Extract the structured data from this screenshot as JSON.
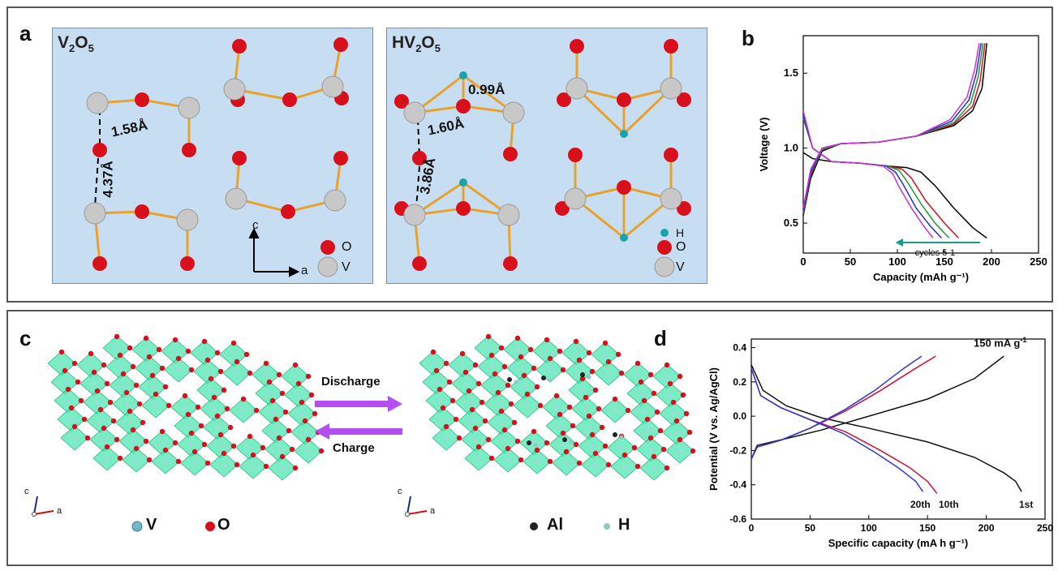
{
  "panels": {
    "a": {
      "letter": "a",
      "left_title": "V",
      "left_title_sub1": "2",
      "left_title_mid": "O",
      "left_title_sub2": "5",
      "right_title": "HV",
      "right_title_sub1": "2",
      "right_title_mid": "O",
      "right_title_sub2": "5",
      "dist_left_bond": "1.58Å",
      "dist_left_gap": "4.37Å",
      "dist_right_bond": "1.60Å",
      "dist_right_gap": "3.86Å",
      "dist_right_h": "0.99Å",
      "axis_c": "c",
      "axis_a": "a",
      "legend_o": "O",
      "legend_v": "V",
      "legend_h": "H",
      "colors": {
        "O": "#d8101c",
        "V": "#c8c8c8",
        "H": "#1aa3a8",
        "bond": "#e8a22c",
        "bg": "#c7def2"
      }
    },
    "b": {
      "letter": "b",
      "annotation": "cycles 5-1"
    },
    "c": {
      "letter": "c",
      "discharge": "Discharge",
      "charge": "Charge",
      "legend_left_v": "V",
      "legend_left_o": "O",
      "legend_right_al": "Al",
      "legend_right_h": "H",
      "axis_c": "c",
      "axis_a": "a",
      "colors": {
        "octahedra": "#4fe6b0",
        "arrow": "#b44ef0"
      }
    },
    "d": {
      "letter": "d",
      "current_label": "150 mA g",
      "current_sup": "-1",
      "labels": [
        "20th",
        "10th",
        "1st"
      ]
    }
  },
  "chart_data": [
    {
      "type": "line",
      "panel": "b",
      "xlabel": "Capacity (mAh g⁻¹)",
      "ylabel": "Voltage (V)",
      "xlim": [
        0,
        250
      ],
      "ylim": [
        0.3,
        1.75
      ],
      "xticks": [
        0,
        50,
        100,
        150,
        200,
        250
      ],
      "yticks": [
        0.5,
        1.0,
        1.5
      ],
      "series": [
        {
          "color": "#000000",
          "discharge": [
            [
              0,
              0.97
            ],
            [
              10,
              0.93
            ],
            [
              30,
              0.91
            ],
            [
              60,
              0.9
            ],
            [
              90,
              0.88
            ],
            [
              110,
              0.87
            ],
            [
              125,
              0.84
            ],
            [
              140,
              0.75
            ],
            [
              160,
              0.6
            ],
            [
              180,
              0.47
            ],
            [
              195,
              0.4
            ]
          ],
          "charge": [
            [
              0,
              0.55
            ],
            [
              8,
              0.8
            ],
            [
              20,
              0.98
            ],
            [
              40,
              1.03
            ],
            [
              80,
              1.04
            ],
            [
              120,
              1.08
            ],
            [
              160,
              1.15
            ],
            [
              180,
              1.25
            ],
            [
              190,
              1.4
            ],
            [
              195,
              1.7
            ]
          ]
        },
        {
          "color": "#d01020",
          "discharge": [
            [
              0,
              1.2
            ],
            [
              10,
              1.0
            ],
            [
              30,
              0.91
            ],
            [
              60,
              0.9
            ],
            [
              90,
              0.88
            ],
            [
              105,
              0.86
            ],
            [
              115,
              0.8
            ],
            [
              130,
              0.65
            ],
            [
              150,
              0.5
            ],
            [
              165,
              0.4
            ]
          ],
          "charge": [
            [
              0,
              0.56
            ],
            [
              8,
              0.82
            ],
            [
              20,
              0.99
            ],
            [
              40,
              1.03
            ],
            [
              80,
              1.04
            ],
            [
              120,
              1.08
            ],
            [
              160,
              1.16
            ],
            [
              180,
              1.28
            ],
            [
              188,
              1.45
            ],
            [
              193,
              1.7
            ]
          ]
        },
        {
          "color": "#1a9a30",
          "discharge": [
            [
              0,
              1.2
            ],
            [
              10,
              1.0
            ],
            [
              30,
              0.91
            ],
            [
              60,
              0.9
            ],
            [
              90,
              0.88
            ],
            [
              102,
              0.85
            ],
            [
              110,
              0.78
            ],
            [
              125,
              0.63
            ],
            [
              140,
              0.5
            ],
            [
              155,
              0.4
            ]
          ],
          "charge": [
            [
              0,
              0.57
            ],
            [
              8,
              0.83
            ],
            [
              20,
              0.99
            ],
            [
              40,
              1.03
            ],
            [
              80,
              1.04
            ],
            [
              120,
              1.08
            ],
            [
              160,
              1.17
            ],
            [
              178,
              1.3
            ],
            [
              186,
              1.48
            ],
            [
              191,
              1.7
            ]
          ]
        },
        {
          "color": "#2030d0",
          "discharge": [
            [
              0,
              1.22
            ],
            [
              10,
              1.0
            ],
            [
              30,
              0.91
            ],
            [
              60,
              0.9
            ],
            [
              88,
              0.88
            ],
            [
              98,
              0.84
            ],
            [
              106,
              0.76
            ],
            [
              120,
              0.6
            ],
            [
              135,
              0.48
            ],
            [
              147,
              0.4
            ]
          ],
          "charge": [
            [
              0,
              0.58
            ],
            [
              8,
              0.84
            ],
            [
              20,
              1.0
            ],
            [
              40,
              1.03
            ],
            [
              80,
              1.04
            ],
            [
              120,
              1.08
            ],
            [
              158,
              1.18
            ],
            [
              176,
              1.32
            ],
            [
              184,
              1.5
            ],
            [
              189,
              1.7
            ]
          ]
        },
        {
          "color": "#d030d0",
          "discharge": [
            [
              0,
              1.25
            ],
            [
              10,
              1.0
            ],
            [
              30,
              0.91
            ],
            [
              60,
              0.9
            ],
            [
              85,
              0.88
            ],
            [
              95,
              0.83
            ],
            [
              102,
              0.74
            ],
            [
              115,
              0.6
            ],
            [
              128,
              0.48
            ],
            [
              138,
              0.4
            ]
          ],
          "charge": [
            [
              0,
              0.6
            ],
            [
              8,
              0.86
            ],
            [
              20,
              1.0
            ],
            [
              40,
              1.03
            ],
            [
              80,
              1.04
            ],
            [
              120,
              1.08
            ],
            [
              156,
              1.19
            ],
            [
              174,
              1.34
            ],
            [
              182,
              1.52
            ],
            [
              187,
              1.7
            ]
          ]
        }
      ]
    },
    {
      "type": "line",
      "panel": "d",
      "xlabel": "Specific capacity (mA h g⁻¹)",
      "ylabel": "Potential (V vs. Ag/AgCl)",
      "xlim": [
        0,
        250
      ],
      "ylim": [
        -0.6,
        0.45
      ],
      "xticks": [
        0,
        50,
        100,
        150,
        200,
        250
      ],
      "yticks": [
        -0.6,
        -0.4,
        -0.2,
        0.0,
        0.2,
        0.4
      ],
      "series": [
        {
          "name": "1st",
          "color": "#111111",
          "discharge": [
            [
              0,
              0.3
            ],
            [
              10,
              0.15
            ],
            [
              30,
              0.06
            ],
            [
              60,
              -0.01
            ],
            [
              100,
              -0.07
            ],
            [
              150,
              -0.15
            ],
            [
              190,
              -0.24
            ],
            [
              215,
              -0.33
            ],
            [
              225,
              -0.38
            ],
            [
              230,
              -0.44
            ]
          ],
          "charge": [
            [
              0,
              -0.25
            ],
            [
              5,
              -0.17
            ],
            [
              30,
              -0.13
            ],
            [
              60,
              -0.08
            ],
            [
              100,
              0.0
            ],
            [
              150,
              0.1
            ],
            [
              190,
              0.22
            ],
            [
              215,
              0.35
            ]
          ]
        },
        {
          "name": "10th",
          "color": "#d0103a",
          "discharge": [
            [
              0,
              0.28
            ],
            [
              8,
              0.12
            ],
            [
              25,
              0.05
            ],
            [
              50,
              -0.02
            ],
            [
              80,
              -0.09
            ],
            [
              110,
              -0.2
            ],
            [
              135,
              -0.3
            ],
            [
              150,
              -0.38
            ],
            [
              158,
              -0.45
            ]
          ],
          "charge": [
            [
              0,
              -0.25
            ],
            [
              5,
              -0.18
            ],
            [
              25,
              -0.14
            ],
            [
              50,
              -0.07
            ],
            [
              80,
              0.03
            ],
            [
              110,
              0.15
            ],
            [
              140,
              0.28
            ],
            [
              157,
              0.35
            ]
          ]
        },
        {
          "name": "20th",
          "color": "#2a38d8",
          "discharge": [
            [
              0,
              0.28
            ],
            [
              8,
              0.12
            ],
            [
              25,
              0.05
            ],
            [
              50,
              -0.02
            ],
            [
              78,
              -0.1
            ],
            [
              105,
              -0.21
            ],
            [
              125,
              -0.3
            ],
            [
              140,
              -0.38
            ],
            [
              146,
              -0.44
            ]
          ],
          "charge": [
            [
              0,
              -0.25
            ],
            [
              5,
              -0.18
            ],
            [
              25,
              -0.14
            ],
            [
              50,
              -0.07
            ],
            [
              80,
              0.04
            ],
            [
              105,
              0.15
            ],
            [
              130,
              0.28
            ],
            [
              145,
              0.35
            ]
          ]
        }
      ]
    }
  ]
}
